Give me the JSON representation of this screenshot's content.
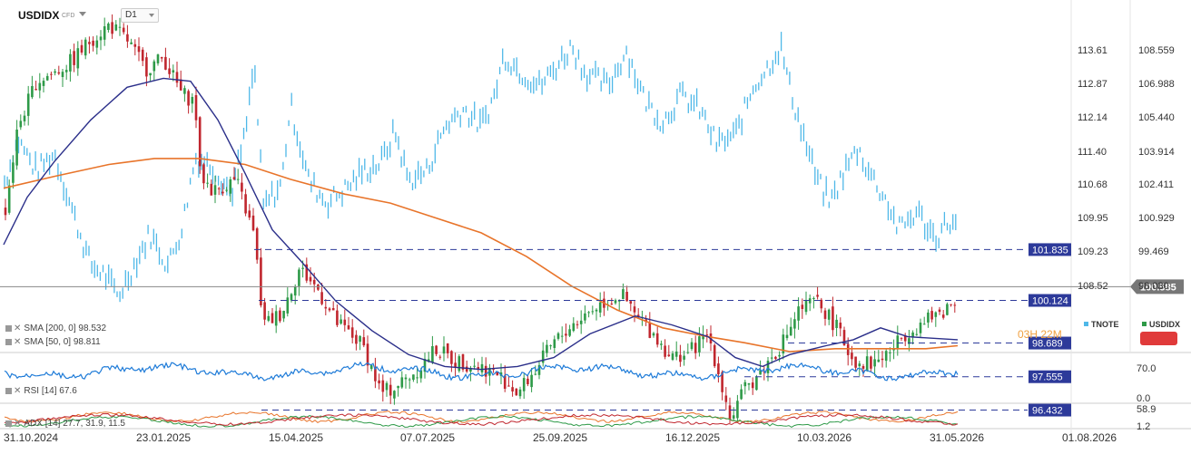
{
  "header": {
    "symbol": "USDIDX",
    "type": "CFD",
    "timeframe": "D1"
  },
  "right_axis_tnote": [
    "113.61",
    "112.87",
    "112.14",
    "111.40",
    "110.68",
    "109.95",
    "109.23",
    "108.52"
  ],
  "right_axis_usdidx": [
    "108.559",
    "106.988",
    "105.440",
    "103.914",
    "102.411",
    "100.929",
    "99.469",
    "98.030"
  ],
  "price_tags": [
    {
      "label": "101.835"
    },
    {
      "label": "100.124"
    },
    {
      "label": "98.689"
    },
    {
      "label": "97.555"
    },
    {
      "label": "96.432"
    }
  ],
  "current_price": "100.585",
  "legend": {
    "tnote": "TNOTE",
    "usdidx": "USDIDX"
  },
  "countdown": "03H 22M",
  "indicators": {
    "sma200": "SMA [200, 0] 98.532",
    "sma50": "SMA [50, 0] 98.811",
    "rsi": "RSI [14] 67.6",
    "adx": "ADX [14] 27.7, 31.9, 11.5"
  },
  "rsi_axis": [
    "70.0",
    "0.0"
  ],
  "adx_axis": [
    "58.9",
    "1.2"
  ],
  "x_axis": [
    "31.10.2024",
    "23.01.2025",
    "15.04.2025",
    "07.07.2025",
    "25.09.2025",
    "16.12.2025",
    "10.03.2026",
    "31.05.2026",
    "01.08.2026"
  ],
  "colors": {
    "up": "#2e9a48",
    "down": "#c0262e",
    "tnote": "#4fb8e8",
    "sma50": "#2b2f8a",
    "sma200": "#e8742a",
    "tag": "#2d3a9a"
  }
}
